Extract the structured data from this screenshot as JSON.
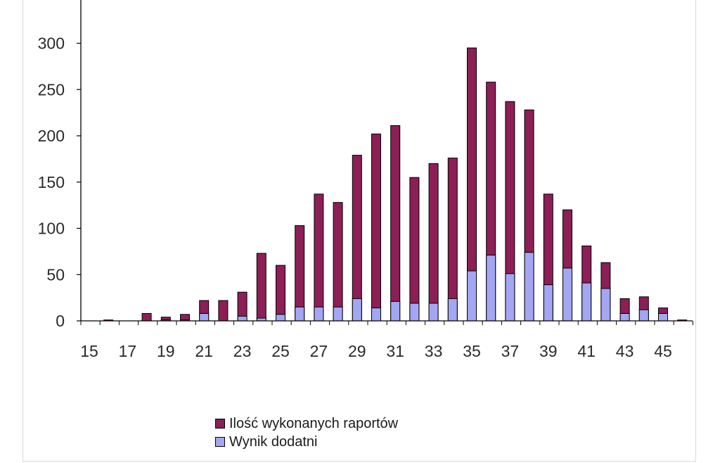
{
  "chart_data": {
    "type": "bar",
    "stacked": false,
    "overlap": true,
    "x": [
      16,
      17,
      18,
      19,
      20,
      21,
      22,
      23,
      24,
      25,
      26,
      27,
      28,
      29,
      30,
      31,
      32,
      33,
      34,
      35,
      36,
      37,
      38,
      39,
      40,
      41,
      42,
      43,
      44,
      45,
      46
    ],
    "series": [
      {
        "name": "Ilość wykonanych raportów",
        "color": "#8c1f55",
        "values": [
          1,
          0,
          8,
          4,
          7,
          22,
          22,
          31,
          73,
          60,
          103,
          137,
          128,
          179,
          202,
          211,
          155,
          170,
          176,
          295,
          258,
          237,
          228,
          137,
          120,
          81,
          63,
          24,
          26,
          14,
          1
        ]
      },
      {
        "name": "Wynik dodatni",
        "color": "#a3a6f2",
        "values": [
          0,
          0,
          0,
          1,
          1,
          8,
          0,
          5,
          3,
          7,
          15,
          15,
          15,
          24,
          14,
          21,
          19,
          19,
          24,
          54,
          71,
          51,
          74,
          39,
          57,
          41,
          35,
          8,
          12,
          8,
          0
        ]
      }
    ],
    "x_tick_labels": [
      "15",
      "17",
      "19",
      "21",
      "23",
      "25",
      "27",
      "29",
      "31",
      "33",
      "35",
      "37",
      "39",
      "41",
      "43",
      "45"
    ],
    "y_tick_labels": [
      "0",
      "50",
      "100",
      "150",
      "200",
      "250",
      "300"
    ],
    "ylim": [
      0,
      340
    ],
    "xlim": [
      15,
      46.5
    ],
    "legend_position": "bottom",
    "grid": false
  }
}
